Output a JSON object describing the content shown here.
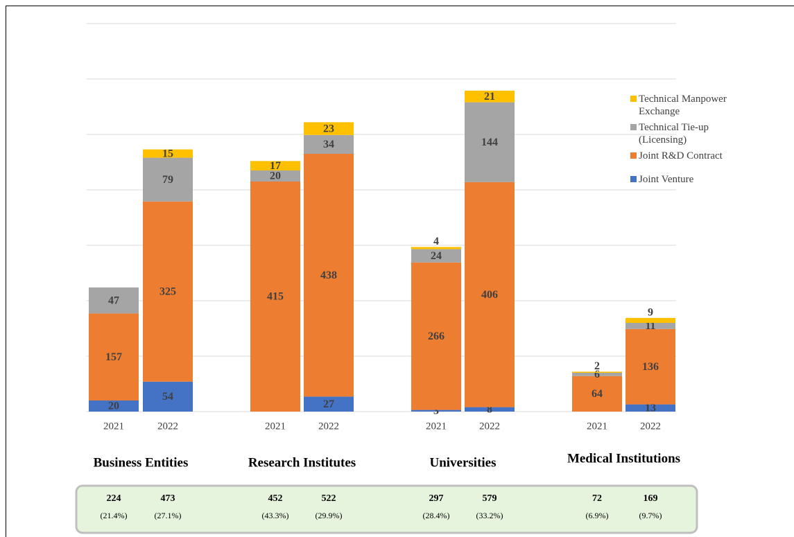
{
  "chart_data": {
    "type": "stacked_bar",
    "categories": [
      "2021",
      "2022",
      "2021",
      "2022",
      "2021",
      "2022",
      "2021",
      "2022"
    ],
    "groups": [
      "Business Entities",
      "Research Institutes",
      "Universities",
      "Medical Institutions"
    ],
    "series": [
      {
        "name": "Joint Venture",
        "color": "#4472c4",
        "values": [
          20,
          54,
          null,
          27,
          3,
          8,
          null,
          13
        ]
      },
      {
        "name": "Joint R&D Contract",
        "color": "#ed7d31",
        "values": [
          157,
          325,
          415,
          438,
          266,
          406,
          64,
          136
        ]
      },
      {
        "name": "Technical Tie-up (Licensing)",
        "color": "#a5a5a5",
        "values": [
          47,
          79,
          20,
          34,
          24,
          144,
          6,
          11
        ]
      },
      {
        "name": "Technical Manpower Exchange",
        "color": "#ffc000",
        "values": [
          null,
          15,
          17,
          23,
          4,
          21,
          2,
          9
        ]
      }
    ],
    "ylim": [
      0,
      700
    ],
    "yticks": [
      0,
      100,
      200,
      300,
      400,
      500,
      600,
      700
    ],
    "grid": true,
    "summary_totals": [
      224,
      473,
      452,
      522,
      297,
      579,
      72,
      169
    ],
    "summary_shares": [
      "(21.4%)",
      "(27.1%)",
      "(43.3%)",
      "(29.9%)",
      "(28.4%)",
      "(33.2%)",
      "(6.9%)",
      "(9.7%)"
    ]
  }
}
